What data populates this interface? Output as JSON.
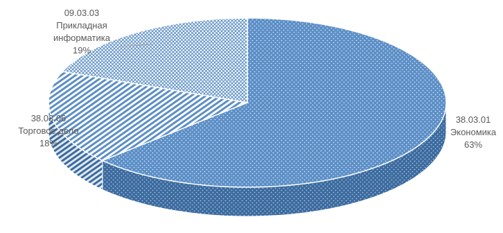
{
  "chart_data": {
    "type": "pie",
    "style": "3d-pie",
    "slices": [
      {
        "code": "38.03.01",
        "name": "Экономика",
        "pct_label": "63%",
        "value": 63,
        "color": "#5b8ec6",
        "pattern": "dots"
      },
      {
        "code": "38.03.06",
        "name": "Торговое дело",
        "pct_label": "18%",
        "value": 18,
        "color": "#5b8ec6",
        "pattern": "diagonal-stripes"
      },
      {
        "code": "09.03.03",
        "name": "Прикладная",
        "name2": "информатика",
        "pct_label": "19%",
        "value": 19,
        "color": "#5b8ec6",
        "pattern": "cross-hatch"
      }
    ],
    "title": "",
    "legend": "none"
  }
}
